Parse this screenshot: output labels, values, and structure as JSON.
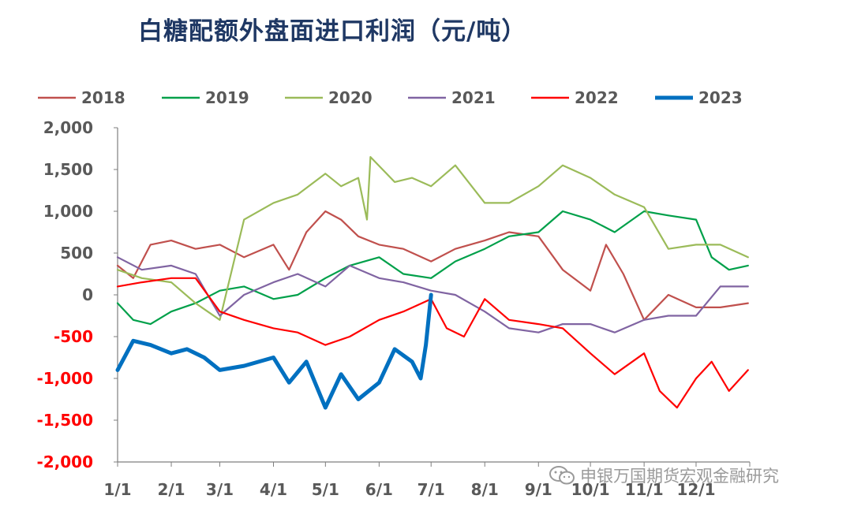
{
  "chart_data": {
    "type": "line",
    "title": "白糖配额外盘面进口利润（元/吨）",
    "xlabel": "",
    "ylabel": "",
    "ylim": [
      -2000,
      2000
    ],
    "y_ticks": [
      2000,
      1500,
      1000,
      500,
      0,
      -500,
      -1000,
      -1500,
      -2000
    ],
    "y_tick_labels": [
      "2,000",
      "1,500",
      "1,000",
      "500",
      "0",
      "-500",
      "-1,000",
      "-1,500",
      "-2,000"
    ],
    "x_ticks": [
      "1/1",
      "2/1",
      "3/1",
      "4/1",
      "5/1",
      "6/1",
      "7/1",
      "8/1",
      "9/1",
      "10/1",
      "11/1",
      "12/1"
    ],
    "grid": false,
    "legend_position": "top",
    "series": [
      {
        "name": "2018",
        "color": "#c0504d",
        "x": [
          "1/1",
          "1/10",
          "1/20",
          "2/1",
          "2/15",
          "3/1",
          "3/15",
          "4/1",
          "4/10",
          "4/20",
          "5/1",
          "5/10",
          "5/20",
          "6/1",
          "6/15",
          "7/1",
          "7/15",
          "8/1",
          "8/15",
          "9/1",
          "9/15",
          "10/1",
          "10/10",
          "10/20",
          "11/1",
          "11/15",
          "12/1",
          "12/15",
          "12/31"
        ],
        "values": [
          350,
          200,
          600,
          650,
          550,
          600,
          450,
          600,
          300,
          750,
          1000,
          900,
          700,
          600,
          550,
          400,
          550,
          650,
          750,
          700,
          300,
          50,
          600,
          250,
          -300,
          0,
          -150,
          -150,
          -100
        ]
      },
      {
        "name": "2019",
        "color": "#00a04a",
        "x": [
          "1/1",
          "1/10",
          "1/20",
          "2/1",
          "2/15",
          "3/1",
          "3/15",
          "4/1",
          "4/15",
          "5/1",
          "5/15",
          "6/1",
          "6/15",
          "7/1",
          "7/15",
          "8/1",
          "8/15",
          "9/1",
          "9/15",
          "10/1",
          "10/15",
          "11/1",
          "11/15",
          "12/1",
          "12/10",
          "12/20",
          "12/31"
        ],
        "values": [
          -100,
          -300,
          -350,
          -200,
          -100,
          50,
          100,
          -50,
          0,
          200,
          350,
          450,
          250,
          200,
          400,
          550,
          700,
          750,
          1000,
          900,
          750,
          1000,
          950,
          900,
          450,
          300,
          350
        ]
      },
      {
        "name": "2020",
        "color": "#9bbb59",
        "x": [
          "1/1",
          "1/15",
          "2/1",
          "2/15",
          "3/1",
          "3/15",
          "4/1",
          "4/15",
          "5/1",
          "5/10",
          "5/20",
          "5/25",
          "5/27",
          "6/10",
          "6/20",
          "7/1",
          "7/15",
          "8/1",
          "8/15",
          "9/1",
          "9/15",
          "10/1",
          "10/15",
          "11/1",
          "11/15",
          "12/1",
          "12/15",
          "12/31"
        ],
        "values": [
          300,
          200,
          150,
          -100,
          -300,
          900,
          1100,
          1200,
          1450,
          1300,
          1400,
          900,
          1650,
          1350,
          1400,
          1300,
          1550,
          1100,
          1100,
          1300,
          1550,
          1400,
          1200,
          1050,
          550,
          600,
          600,
          450
        ]
      },
      {
        "name": "2021",
        "color": "#8064a2",
        "x": [
          "1/1",
          "1/15",
          "2/1",
          "2/15",
          "3/1",
          "3/15",
          "4/1",
          "4/15",
          "5/1",
          "5/15",
          "6/1",
          "6/15",
          "7/1",
          "7/15",
          "8/1",
          "8/15",
          "9/1",
          "9/15",
          "10/1",
          "10/15",
          "11/1",
          "11/15",
          "12/1",
          "12/15",
          "12/31"
        ],
        "values": [
          450,
          300,
          350,
          250,
          -250,
          0,
          150,
          250,
          100,
          350,
          200,
          150,
          50,
          0,
          -200,
          -400,
          -450,
          -350,
          -350,
          -450,
          -300,
          -250,
          -250,
          100,
          100
        ]
      },
      {
        "name": "2022",
        "color": "#ff0000",
        "x": [
          "1/1",
          "1/15",
          "2/1",
          "2/15",
          "3/1",
          "3/15",
          "4/1",
          "4/15",
          "5/1",
          "5/15",
          "6/1",
          "6/15",
          "7/1",
          "7/10",
          "7/20",
          "8/1",
          "8/15",
          "9/1",
          "9/15",
          "10/1",
          "10/15",
          "11/1",
          "11/10",
          "11/20",
          "12/1",
          "12/10",
          "12/20",
          "12/31"
        ],
        "values": [
          100,
          150,
          200,
          200,
          -200,
          -300,
          -400,
          -450,
          -600,
          -500,
          -300,
          -200,
          -50,
          -400,
          -500,
          -50,
          -300,
          -350,
          -400,
          -700,
          -950,
          -700,
          -1150,
          -1350,
          -1000,
          -800,
          -1150,
          -900
        ]
      },
      {
        "name": "2023",
        "color": "#0070c0",
        "x": [
          "1/1",
          "1/10",
          "1/20",
          "2/1",
          "2/10",
          "2/20",
          "3/1",
          "3/15",
          "4/1",
          "4/10",
          "4/20",
          "5/1",
          "5/10",
          "5/20",
          "6/1",
          "6/10",
          "6/20",
          "6/25",
          "6/28",
          "7/1"
        ],
        "values": [
          -900,
          -550,
          -600,
          -700,
          -650,
          -750,
          -900,
          -850,
          -750,
          -1050,
          -800,
          -1350,
          -950,
          -1250,
          -1050,
          -650,
          -800,
          -1000,
          -600,
          0
        ]
      }
    ]
  },
  "watermark_text": "申银万国期货宏观金融研究"
}
